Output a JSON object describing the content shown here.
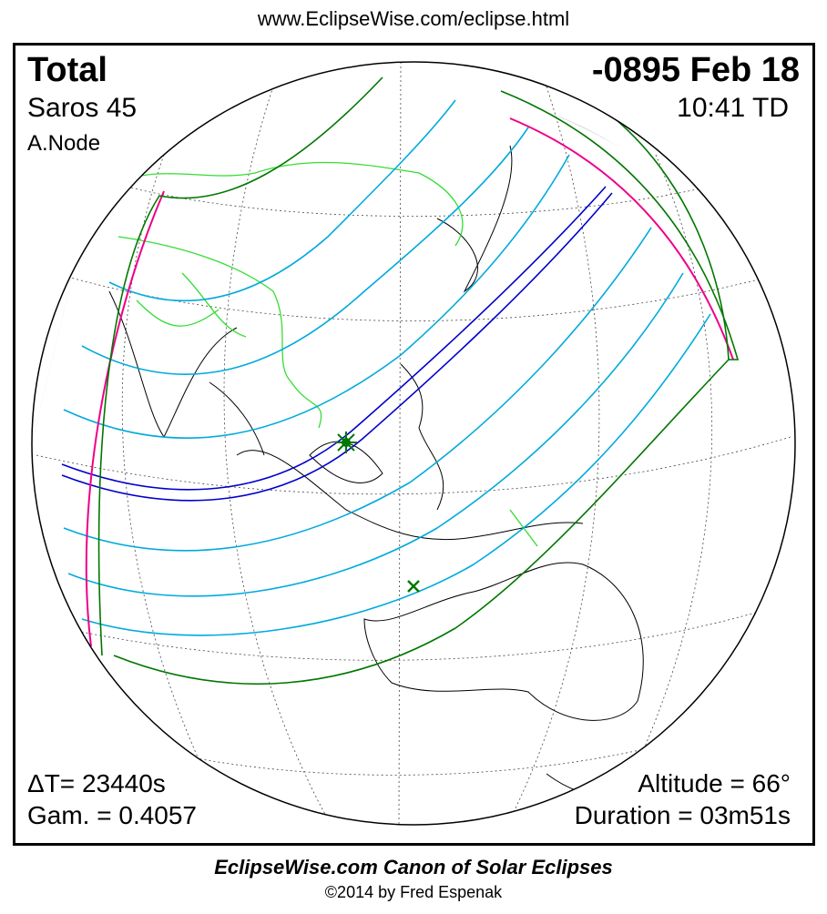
{
  "header": {
    "url": "www.EclipseWise.com/eclipse.html"
  },
  "eclipse": {
    "type": "Total",
    "date": "-0895 Feb 18",
    "saros": "Saros  45",
    "time": "10:41 TD",
    "node": "A.Node",
    "delta_t": "ΔT=  23440s",
    "gamma": "Gam. = 0.4057",
    "altitude": "Altitude = 66°",
    "duration": "Duration = 03m51s"
  },
  "footer": {
    "canon": "EclipseWise.com Canon of Solar Eclipses",
    "copyright": "©2014 by Fred Espenak"
  },
  "colors": {
    "central_path": "#0000cc",
    "penumbral_lines": "#00aadd",
    "penumbra_limits": "#007700",
    "rise_set": "#ee0088",
    "borders": "#33dd33",
    "night": "#bbbbbb"
  },
  "markers": {
    "greatest_eclipse": "star-icon",
    "greatest_duration": "x-icon"
  }
}
